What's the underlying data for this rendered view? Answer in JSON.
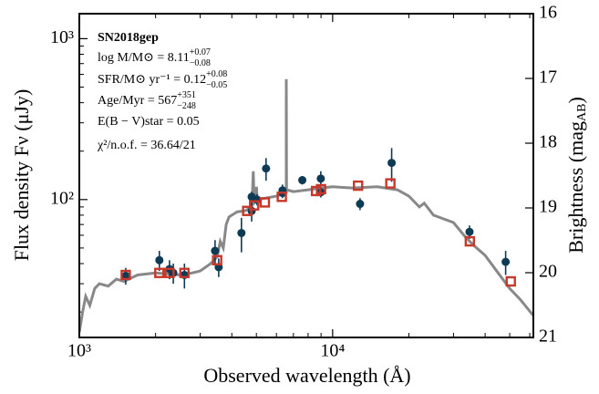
{
  "chart_data": {
    "type": "sed",
    "annotations": [
      {
        "text": "SN2018gep"
      },
      {
        "text": "log M/M⊙ = 8.11",
        "sup": "+0.07",
        "sub": "−0.08"
      },
      {
        "text": "SFR/M⊙ yr⁻¹ = 0.12",
        "sup": "+0.08",
        "sub": "−0.05"
      },
      {
        "text": "Age/Myr = 567",
        "sup": "+351",
        "sub": "−248"
      },
      {
        "text": "E(B − V)star = 0.05"
      },
      {
        "text": "χ²/n.o.f. = 36.64/21"
      }
    ],
    "xlabel": "Observed wavelength (Å)",
    "ylabel": "Flux density Fν (μJy)",
    "y2label": [
      "Brightness (mag",
      "AB",
      ")"
    ],
    "xlog": true,
    "ylog": true,
    "xlim": [
      1000,
      62000
    ],
    "ylim": [
      13.9,
      1430
    ],
    "y2lim": [
      16,
      21
    ],
    "xticks": [
      {
        "value": 1000,
        "label": "10³"
      },
      {
        "value": 10000,
        "label": "10⁴"
      }
    ],
    "yticks": [
      {
        "value": 100,
        "label": "10²"
      },
      {
        "value": 1000,
        "label": "10³"
      }
    ],
    "y2ticks": [
      16,
      17,
      18,
      19,
      20,
      21
    ],
    "series": [
      {
        "kind": "line",
        "color": "#888888",
        "x": [
          1000,
          1030,
          1060,
          1100,
          1150,
          1200,
          1300,
          1400,
          1500,
          1700,
          2000,
          2500,
          2800,
          3000,
          3300,
          3500,
          3600,
          3700,
          3800,
          3900,
          4000,
          4200,
          4500,
          4800,
          4860,
          4900,
          5000,
          5010,
          5030,
          6000,
          6560,
          6563,
          6580,
          7000,
          8000,
          9000,
          10000,
          12000,
          15000,
          18000,
          20000,
          22000,
          23000,
          25000,
          30000,
          33000,
          36000,
          40000,
          45000,
          50000,
          55000,
          62000
        ],
        "values": [
          15,
          20,
          25,
          22,
          28,
          30,
          29,
          32,
          31,
          34,
          35,
          34,
          35,
          36,
          40,
          44,
          55,
          50,
          70,
          78,
          80,
          84,
          85,
          90,
          150,
          95,
          98,
          120,
          100,
          105,
          110,
          560,
          115,
          112,
          115,
          118,
          120,
          118,
          120,
          115,
          105,
          90,
          95,
          80,
          72,
          60,
          52,
          45,
          35,
          28,
          24,
          19
        ]
      },
      {
        "kind": "errorbar",
        "color": "#0d3b56",
        "x": [
          1525,
          2070,
          2270,
          2350,
          2600,
          3435,
          3550,
          4365,
          4790,
          4790,
          5030,
          5460,
          6340,
          6340,
          7590,
          8980,
          8980,
          12830,
          17100,
          34700,
          48200
        ],
        "values": [
          33.6,
          42,
          37,
          35,
          34,
          48,
          38,
          62,
          85,
          104,
          100,
          156,
          114,
          110,
          132,
          111,
          135,
          94,
          169,
          63,
          41
        ],
        "yerr": [
          4,
          6,
          5,
          5,
          6,
          8,
          5,
          15,
          12,
          8,
          8,
          25,
          10,
          8,
          8,
          8,
          15,
          8,
          40,
          6,
          7
        ]
      },
      {
        "kind": "square",
        "color": "#c8382a",
        "x": [
          1525,
          2070,
          2270,
          2600,
          3500,
          4600,
          4900,
          5400,
          6300,
          8600,
          9000,
          12600,
          16900,
          34800,
          50500
        ],
        "values": [
          34,
          35,
          35,
          35,
          42,
          85,
          92,
          96,
          104,
          113,
          116,
          122,
          126,
          55,
          31
        ]
      }
    ]
  }
}
